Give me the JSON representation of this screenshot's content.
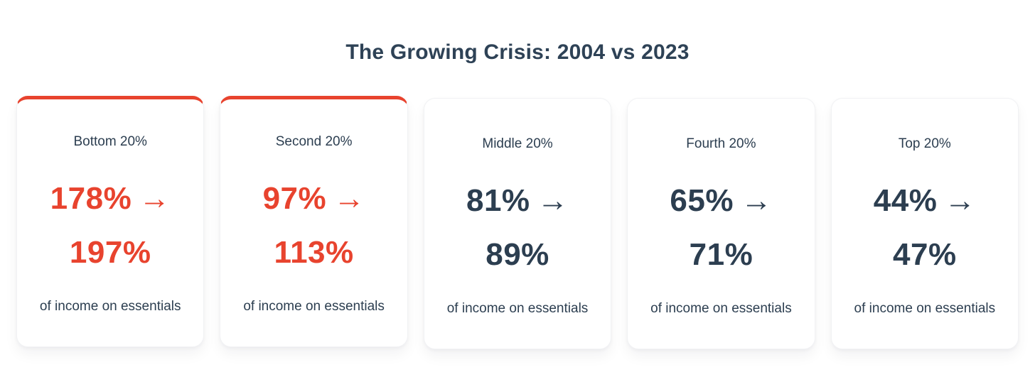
{
  "page": {
    "title": "The Growing Crisis: 2004 vs 2023"
  },
  "arrow": "→",
  "colors": {
    "accent_red": "#e8432e",
    "navy_text": "#2c3e50",
    "title_navy": "#2e4256",
    "card_background": "#ffffff",
    "page_background": "#ffffff"
  },
  "cards": [
    {
      "label": "Bottom 20%",
      "value_2004": "178%",
      "value_2023": "197%",
      "caption": "of income on essentials",
      "highlighted": true
    },
    {
      "label": "Second 20%",
      "value_2004": "97%",
      "value_2023": "113%",
      "caption": "of income on essentials",
      "highlighted": true
    },
    {
      "label": "Middle 20%",
      "value_2004": "81%",
      "value_2023": "89%",
      "caption": "of income on essentials",
      "highlighted": false
    },
    {
      "label": "Fourth 20%",
      "value_2004": "65%",
      "value_2023": "71%",
      "caption": "of income on essentials",
      "highlighted": false
    },
    {
      "label": "Top 20%",
      "value_2004": "44%",
      "value_2023": "47%",
      "caption": "of income on essentials",
      "highlighted": false
    }
  ],
  "chart_data": {
    "type": "table",
    "title": "The Growing Crisis: 2004 vs 2023",
    "categories": [
      "Bottom 20%",
      "Second 20%",
      "Middle 20%",
      "Fourth 20%",
      "Top 20%"
    ],
    "series": [
      {
        "name": "2004",
        "values": [
          178,
          97,
          81,
          65,
          44
        ]
      },
      {
        "name": "2023",
        "values": [
          197,
          113,
          89,
          71,
          47
        ]
      }
    ],
    "unit": "% of income on essentials",
    "layout": {
      "style": "stat-cards",
      "highlighted_categories": [
        "Bottom 20%",
        "Second 20%"
      ]
    }
  }
}
